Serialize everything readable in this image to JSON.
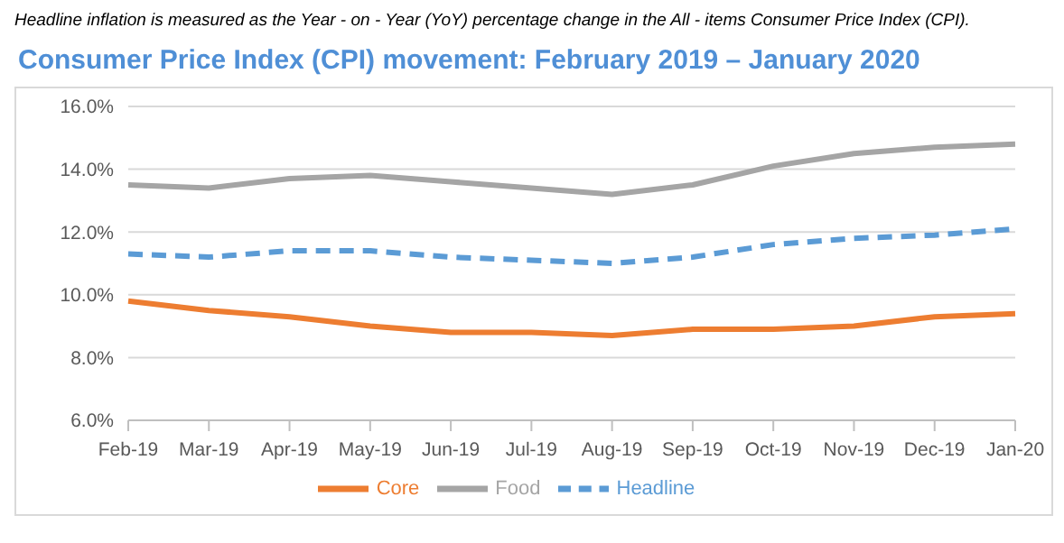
{
  "chart_data": {
    "type": "line",
    "title": "Consumer Price Index (CPI) movement: February 2019 – January 2020",
    "annotations": [
      "Headline inflation is measured as the Year - on - Year (YoY) percentage change in the All - items Consumer Price Index (CPI)."
    ],
    "categories": [
      "Feb-19",
      "Mar-19",
      "Apr-19",
      "May-19",
      "Jun-19",
      "Jul-19",
      "Aug-19",
      "Sep-19",
      "Oct-19",
      "Nov-19",
      "Dec-19",
      "Jan-20"
    ],
    "series": [
      {
        "name": "Headline",
        "color": "#5b9bd5",
        "line_style": "dashed",
        "values": [
          11.3,
          11.2,
          11.4,
          11.4,
          11.2,
          11.1,
          11.0,
          11.2,
          11.6,
          11.8,
          11.9,
          12.1
        ]
      },
      {
        "name": "Food",
        "color": "#a5a5a5",
        "line_style": "solid",
        "values": [
          13.5,
          13.4,
          13.7,
          13.8,
          13.6,
          13.4,
          13.2,
          13.5,
          14.1,
          14.5,
          14.7,
          14.8
        ]
      },
      {
        "name": "Core",
        "color": "#ed7d31",
        "line_style": "solid",
        "values": [
          9.8,
          9.5,
          9.3,
          9.0,
          8.8,
          8.8,
          8.7,
          8.9,
          8.9,
          9.0,
          9.3,
          9.4
        ]
      }
    ],
    "ylim": [
      6,
      16
    ],
    "yticks": [
      {
        "value": 6,
        "label": "6.0%"
      },
      {
        "value": 8,
        "label": "8.0%"
      },
      {
        "value": 10,
        "label": "10.0%"
      },
      {
        "value": 12,
        "label": "12.0%"
      },
      {
        "value": 14,
        "label": "14.0%"
      },
      {
        "value": 16,
        "label": "16.0%"
      }
    ],
    "grid": "y",
    "legend": "bottom",
    "marker": "none"
  }
}
